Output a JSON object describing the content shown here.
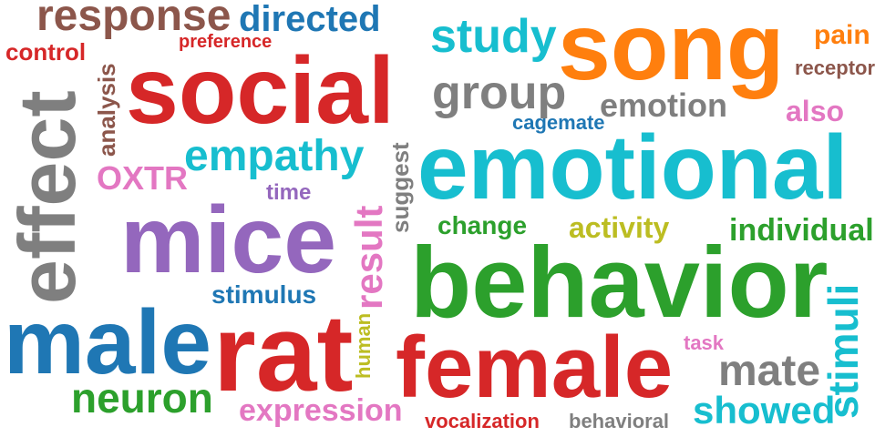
{
  "colors": {
    "red": "#d62728",
    "blue": "#1f77b4",
    "orange": "#ff7f0e",
    "green": "#2ca02c",
    "purple": "#9467bd",
    "brown": "#8c564b",
    "pink": "#e377c2",
    "gray": "#7f7f7f",
    "olive": "#bcbd22",
    "cyan": "#17becf"
  },
  "words": [
    {
      "text": "response",
      "color": "#8c564b"
    },
    {
      "text": "directed",
      "color": "#1f77b4"
    },
    {
      "text": "study",
      "color": "#17becf"
    },
    {
      "text": "song",
      "color": "#ff7f0e"
    },
    {
      "text": "pain",
      "color": "#ff7f0e"
    },
    {
      "text": "control",
      "color": "#d62728"
    },
    {
      "text": "preference",
      "color": "#d62728"
    },
    {
      "text": "receptor",
      "color": "#8c564b"
    },
    {
      "text": "analysis",
      "color": "#8c564b"
    },
    {
      "text": "social",
      "color": "#d62728"
    },
    {
      "text": "group",
      "color": "#7f7f7f"
    },
    {
      "text": "emotion",
      "color": "#7f7f7f"
    },
    {
      "text": "also",
      "color": "#e377c2"
    },
    {
      "text": "effect",
      "color": "#7f7f7f"
    },
    {
      "text": "cagemate",
      "color": "#1f77b4"
    },
    {
      "text": "empathy",
      "color": "#17becf"
    },
    {
      "text": "emotional",
      "color": "#17becf"
    },
    {
      "text": "OXTR",
      "color": "#e377c2"
    },
    {
      "text": "suggest",
      "color": "#7f7f7f"
    },
    {
      "text": "time",
      "color": "#9467bd"
    },
    {
      "text": "result",
      "color": "#e377c2"
    },
    {
      "text": "mice",
      "color": "#9467bd"
    },
    {
      "text": "change",
      "color": "#2ca02c"
    },
    {
      "text": "activity",
      "color": "#bcbd22"
    },
    {
      "text": "individual",
      "color": "#2ca02c"
    },
    {
      "text": "behavior",
      "color": "#2ca02c"
    },
    {
      "text": "stimulus",
      "color": "#1f77b4"
    },
    {
      "text": "stimuli",
      "color": "#17becf"
    },
    {
      "text": "male",
      "color": "#1f77b4"
    },
    {
      "text": "rat",
      "color": "#d62728"
    },
    {
      "text": "human",
      "color": "#bcbd22"
    },
    {
      "text": "task",
      "color": "#e377c2"
    },
    {
      "text": "female",
      "color": "#d62728"
    },
    {
      "text": "mate",
      "color": "#7f7f7f"
    },
    {
      "text": "neuron",
      "color": "#2ca02c"
    },
    {
      "text": "expression",
      "color": "#e377c2"
    },
    {
      "text": "showed",
      "color": "#17becf"
    },
    {
      "text": "vocalization",
      "color": "#d62728"
    },
    {
      "text": "behavioral",
      "color": "#7f7f7f"
    }
  ]
}
